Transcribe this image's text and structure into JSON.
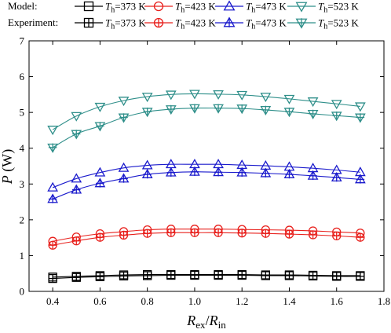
{
  "legend": {
    "model_label": "Model:",
    "experiment_label": "Experiment:",
    "entry_prefix": "T",
    "entry_subscript": "h",
    "entries": [
      "=373 K",
      "=423 K",
      "=473 K",
      "=523 K"
    ]
  },
  "chart_data": {
    "type": "line",
    "xlabel": {
      "main": "R",
      "sub1": "ex",
      "slash": "/",
      "main2": "R",
      "sub2": "in"
    },
    "ylabel": {
      "main": "P",
      "unit": " (W)"
    },
    "xlim": [
      0.3,
      1.8
    ],
    "ylim": [
      0,
      7
    ],
    "xticks": [
      0.4,
      0.6,
      0.8,
      1.0,
      1.2,
      1.4,
      1.6,
      1.8
    ],
    "xtick_labels": [
      "0.4",
      "0.6",
      "0.8",
      "1.0",
      "1.2",
      "1.4",
      "1.6",
      "1.8"
    ],
    "yticks": [
      0,
      1,
      2,
      3,
      4,
      5,
      6,
      7
    ],
    "ytick_labels": [
      "0",
      "1",
      "2",
      "3",
      "4",
      "5",
      "6",
      "7"
    ],
    "grid": false,
    "legend_position": "top",
    "x": [
      0.4,
      0.5,
      0.6,
      0.7,
      0.8,
      0.9,
      1.0,
      1.1,
      1.2,
      1.3,
      1.4,
      1.5,
      1.6,
      1.7
    ],
    "series": [
      {
        "group": "model",
        "color": "#000000",
        "marker": "square",
        "values": [
          0.4,
          0.42,
          0.44,
          0.46,
          0.47,
          0.47,
          0.47,
          0.47,
          0.47,
          0.46,
          0.46,
          0.45,
          0.44,
          0.44
        ]
      },
      {
        "group": "model",
        "color": "#e8201c",
        "marker": "circle",
        "values": [
          1.4,
          1.52,
          1.61,
          1.67,
          1.72,
          1.74,
          1.74,
          1.74,
          1.73,
          1.72,
          1.71,
          1.69,
          1.66,
          1.63
        ]
      },
      {
        "group": "model",
        "color": "#1a1acc",
        "marker": "triangle-up",
        "values": [
          2.9,
          3.15,
          3.32,
          3.45,
          3.52,
          3.55,
          3.55,
          3.55,
          3.53,
          3.51,
          3.48,
          3.44,
          3.39,
          3.33
        ]
      },
      {
        "group": "model",
        "color": "#2f8f8a",
        "marker": "triangle-down",
        "values": [
          4.52,
          4.9,
          5.16,
          5.33,
          5.44,
          5.5,
          5.52,
          5.51,
          5.49,
          5.44,
          5.38,
          5.31,
          5.24,
          5.17
        ]
      },
      {
        "group": "experiment",
        "color": "#000000",
        "marker": "square-plus",
        "values": [
          0.36,
          0.39,
          0.41,
          0.43,
          0.44,
          0.45,
          0.45,
          0.45,
          0.45,
          0.44,
          0.44,
          0.43,
          0.42,
          0.42
        ]
      },
      {
        "group": "experiment",
        "color": "#e8201c",
        "marker": "circle-plus",
        "values": [
          1.29,
          1.41,
          1.51,
          1.57,
          1.62,
          1.64,
          1.64,
          1.64,
          1.63,
          1.62,
          1.6,
          1.58,
          1.55,
          1.51
        ]
      },
      {
        "group": "experiment",
        "color": "#1a1acc",
        "marker": "triangle-up-plus",
        "values": [
          2.58,
          2.84,
          3.02,
          3.15,
          3.27,
          3.32,
          3.34,
          3.33,
          3.32,
          3.3,
          3.27,
          3.23,
          3.18,
          3.13
        ]
      },
      {
        "group": "experiment",
        "color": "#2f8f8a",
        "marker": "triangle-down-plus",
        "values": [
          4.02,
          4.4,
          4.62,
          4.86,
          5.02,
          5.09,
          5.12,
          5.12,
          5.11,
          5.07,
          5.02,
          4.96,
          4.91,
          4.86
        ]
      }
    ]
  }
}
